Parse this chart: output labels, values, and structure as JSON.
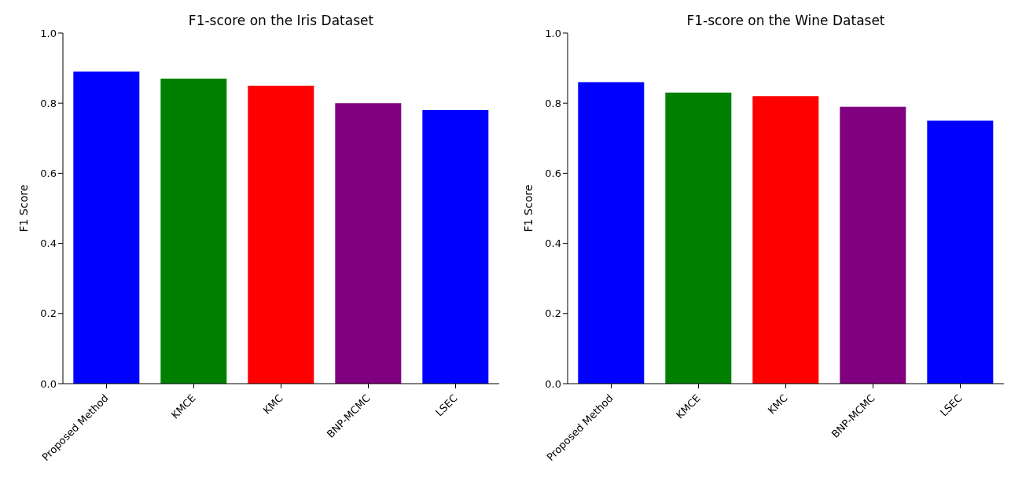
{
  "chart_data": [
    {
      "type": "bar",
      "title": "F1-score on the Iris Dataset",
      "ylabel": "F1 Score",
      "categories": [
        "Proposed Method",
        "KMCE",
        "KMC",
        "BNP-MCMC",
        "LSEC"
      ],
      "values": [
        0.89,
        0.87,
        0.85,
        0.8,
        0.78
      ],
      "colors": [
        "#0000ff",
        "#008000",
        "#ff0000",
        "#800080",
        "#0000ff"
      ],
      "ylim": [
        0,
        1
      ],
      "yticks": [
        {
          "value": 0,
          "label": "0.0"
        },
        {
          "value": 0.2,
          "label": "0.2"
        },
        {
          "value": 0.4,
          "label": "0.4"
        },
        {
          "value": 0.6,
          "label": "0.6"
        },
        {
          "value": 0.8,
          "label": "0.8"
        },
        {
          "value": 1,
          "label": "1.0"
        }
      ],
      "grid": false
    },
    {
      "type": "bar",
      "title": "F1-score on the Wine Dataset",
      "ylabel": "F1 Score",
      "categories": [
        "Proposed Method",
        "KMCE",
        "KMC",
        "BNP-MCMC",
        "LSEC"
      ],
      "values": [
        0.86,
        0.83,
        0.82,
        0.79,
        0.75
      ],
      "colors": [
        "#0000ff",
        "#008000",
        "#ff0000",
        "#800080",
        "#0000ff"
      ],
      "ylim": [
        0,
        1
      ],
      "yticks": [
        {
          "value": 0,
          "label": "0.0"
        },
        {
          "value": 0.2,
          "label": "0.2"
        },
        {
          "value": 0.4,
          "label": "0.4"
        },
        {
          "value": 0.6,
          "label": "0.6"
        },
        {
          "value": 0.8,
          "label": "0.8"
        },
        {
          "value": 1,
          "label": "1.0"
        }
      ],
      "grid": false
    }
  ]
}
